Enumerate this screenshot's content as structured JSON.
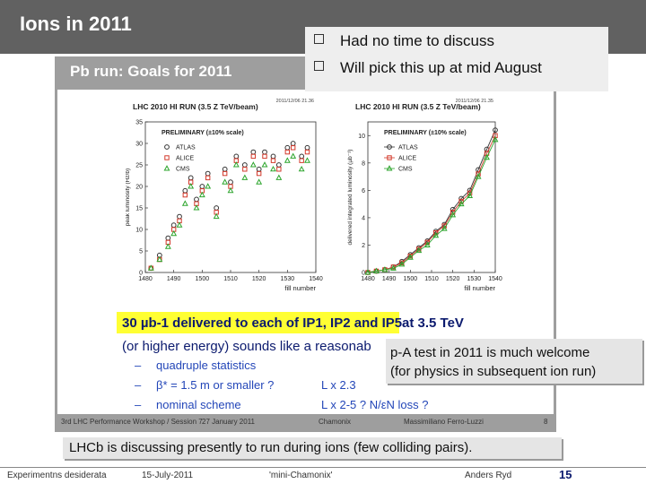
{
  "slide": {
    "title": "Ions in 2011",
    "embedded_title": "Pb run: Goals for 2011",
    "callout_bullets": [
      "Had no time to discuss",
      "Will pick this up at mid August"
    ],
    "highlight": "30 µb-1 delivered to each of IP1, IP2 and IP5",
    "highlight_suffix": "at 3.5 TeV",
    "line2": "(or higher energy) sounds like a reasonab",
    "sub_items": [
      {
        "dash": "–",
        "text": "quadruple statistics",
        "right": ""
      },
      {
        "dash": "–",
        "text": "β* = 1.5 m or smaller ?",
        "right": "L x 2.3"
      },
      {
        "dash": "–",
        "text": "nominal scheme",
        "right": "L x 2-5 ?  N/εN  loss ?"
      }
    ],
    "pa_test": [
      "p-A test in 2011 is much welcome",
      "(for physics in subsequent ion run)"
    ],
    "embedded_footer": [
      "3rd LHC Performance Workshop / Session 7",
      "27 January 2011",
      "Chamonix",
      "Massimiliano Ferro-Luzzi",
      "8"
    ],
    "lhcb_note": "LHCb is discussing presently to run during ions (few colliding pairs).",
    "footer": {
      "left": "Experimentns desiderata",
      "date": "15-July-2011",
      "event": "'mini-Chamonix'",
      "author": "Anders Ryd",
      "page": "15"
    }
  },
  "chart_data": [
    {
      "type": "scatter",
      "title": "LHC 2010 HI RUN (3.5 Z TeV/beam)",
      "timestamp": "2011/12/06  21.36",
      "note": "PRELIMINARY (±10% scale)",
      "ylabel": "peak luminosity (Hz/b)",
      "xlabel": "fill number",
      "xlim": [
        1480,
        1540
      ],
      "ylim": [
        0,
        35
      ],
      "xticks": [
        1480,
        1490,
        1500,
        1510,
        1520,
        1530,
        1540
      ],
      "yticks": [
        0,
        5,
        10,
        15,
        20,
        25,
        30,
        35
      ],
      "series": [
        {
          "name": "ATLAS",
          "color": "#333333",
          "marker": "circle",
          "x": [
            1482,
            1485,
            1488,
            1490,
            1492,
            1494,
            1496,
            1498,
            1500,
            1502,
            1505,
            1508,
            1510,
            1512,
            1515,
            1518,
            1520,
            1522,
            1525,
            1527,
            1530,
            1532,
            1535,
            1537
          ],
          "y": [
            1,
            4,
            8,
            11,
            13,
            19,
            22,
            17,
            20,
            23,
            15,
            24,
            21,
            27,
            25,
            28,
            24,
            28,
            27,
            25,
            29,
            30,
            27,
            29
          ]
        },
        {
          "name": "ALICE",
          "color": "#d33a2c",
          "marker": "square",
          "x": [
            1482,
            1485,
            1488,
            1490,
            1492,
            1494,
            1496,
            1498,
            1500,
            1502,
            1505,
            1508,
            1510,
            1512,
            1515,
            1518,
            1520,
            1522,
            1525,
            1527,
            1530,
            1532,
            1535,
            1537
          ],
          "y": [
            1,
            3,
            7,
            10,
            12,
            18,
            21,
            16,
            19,
            22,
            14,
            23,
            20,
            26,
            24,
            27,
            23,
            27,
            26,
            24,
            28,
            29,
            26,
            28
          ]
        },
        {
          "name": "CMS",
          "color": "#2da52d",
          "marker": "triangle",
          "x": [
            1482,
            1485,
            1488,
            1490,
            1492,
            1494,
            1496,
            1498,
            1500,
            1502,
            1505,
            1508,
            1510,
            1512,
            1515,
            1518,
            1520,
            1522,
            1525,
            1527,
            1530,
            1532,
            1535,
            1537
          ],
          "y": [
            1,
            3,
            6,
            9,
            11,
            16,
            20,
            15,
            18,
            20,
            13,
            21,
            19,
            25,
            22,
            25,
            21,
            25,
            24,
            22,
            26,
            27,
            24,
            26
          ]
        }
      ]
    },
    {
      "type": "line",
      "title": "LHC 2010 HI RUN (3.5 Z TeV/beam)",
      "timestamp": "2011/12/06  21.35",
      "note": "PRELIMINARY (±10% scale)",
      "ylabel": "delivered integrated luminosity (µb⁻¹)",
      "xlabel": "fill number",
      "xlim": [
        1480,
        1540
      ],
      "ylim": [
        0,
        11
      ],
      "xticks": [
        1480,
        1490,
        1500,
        1510,
        1520,
        1530,
        1540
      ],
      "yticks": [
        0,
        2,
        4,
        6,
        8,
        10
      ],
      "series": [
        {
          "name": "ATLAS",
          "color": "#333333",
          "marker": "circle",
          "x": [
            1480,
            1484,
            1488,
            1492,
            1496,
            1500,
            1504,
            1508,
            1512,
            1516,
            1520,
            1524,
            1528,
            1532,
            1536,
            1540
          ],
          "y": [
            0,
            0.1,
            0.2,
            0.4,
            0.8,
            1.3,
            1.8,
            2.3,
            3.0,
            3.5,
            4.6,
            5.4,
            6.0,
            7.5,
            9.0,
            10.4
          ]
        },
        {
          "name": "ALICE",
          "color": "#d33a2c",
          "marker": "square",
          "x": [
            1480,
            1484,
            1488,
            1492,
            1496,
            1500,
            1504,
            1508,
            1512,
            1516,
            1520,
            1524,
            1528,
            1532,
            1536,
            1540
          ],
          "y": [
            0,
            0.1,
            0.2,
            0.4,
            0.7,
            1.2,
            1.7,
            2.2,
            2.9,
            3.4,
            4.4,
            5.2,
            5.8,
            7.2,
            8.7,
            10.0
          ]
        },
        {
          "name": "CMS",
          "color": "#2da52d",
          "marker": "triangle",
          "x": [
            1480,
            1484,
            1488,
            1492,
            1496,
            1500,
            1504,
            1508,
            1512,
            1516,
            1520,
            1524,
            1528,
            1532,
            1536,
            1540
          ],
          "y": [
            0,
            0.1,
            0.2,
            0.3,
            0.6,
            1.1,
            1.6,
            2.0,
            2.7,
            3.2,
            4.2,
            5.0,
            5.6,
            7.0,
            8.4,
            9.7
          ]
        }
      ]
    }
  ]
}
